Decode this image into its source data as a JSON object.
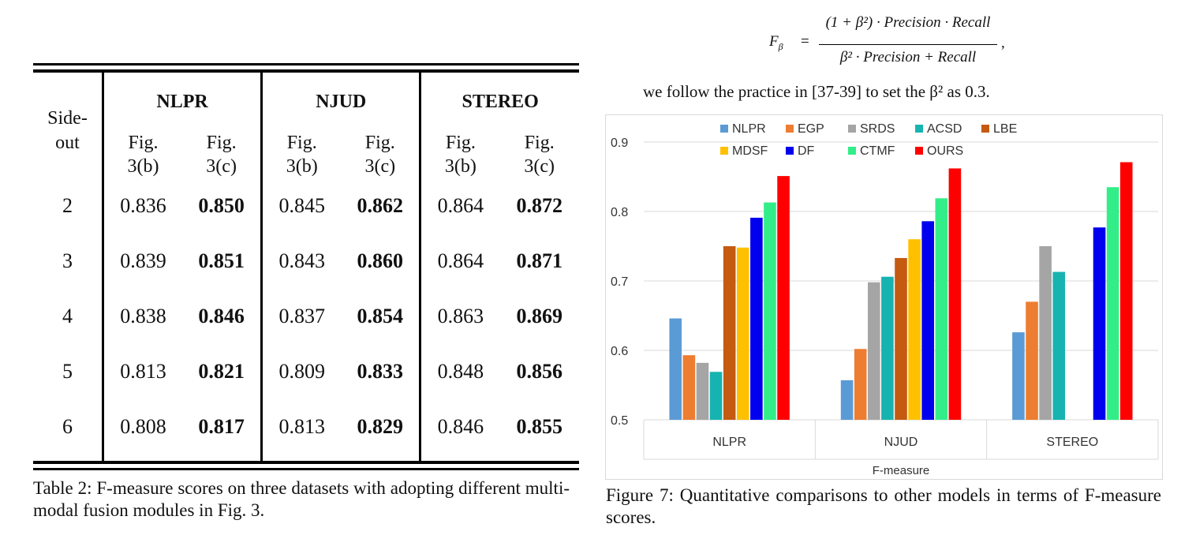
{
  "table": {
    "side_label": [
      "Side-",
      "out"
    ],
    "datasets": [
      "NLPR",
      "NJUD",
      "STEREO"
    ],
    "sub_headers": [
      [
        "Fig.",
        "3(b)"
      ],
      [
        "Fig.",
        "3(c)"
      ]
    ],
    "rows": [
      {
        "side": "2",
        "values": [
          "0.836",
          "0.850",
          "0.845",
          "0.862",
          "0.864",
          "0.872"
        ]
      },
      {
        "side": "3",
        "values": [
          "0.839",
          "0.851",
          "0.843",
          "0.860",
          "0.864",
          "0.871"
        ]
      },
      {
        "side": "4",
        "values": [
          "0.838",
          "0.846",
          "0.837",
          "0.854",
          "0.863",
          "0.869"
        ]
      },
      {
        "side": "5",
        "values": [
          "0.813",
          "0.821",
          "0.809",
          "0.833",
          "0.848",
          "0.856"
        ]
      },
      {
        "side": "6",
        "values": [
          "0.808",
          "0.817",
          "0.813",
          "0.829",
          "0.846",
          "0.855"
        ]
      }
    ],
    "caption": "Table 2: F-measure scores on three datasets with adopting different multi-modal fusion modules in Fig. 3."
  },
  "formula": {
    "lhs": "F",
    "lhs_sub": "β",
    "eq": "=",
    "numerator": "(1 + β²) · Precision · Recall",
    "denominator": "β² · Precision + Recall",
    "comma": ","
  },
  "note": "we follow the practice in [37-39] to set the β² as 0.3.",
  "figure_caption": "Figure 7: Quantitative comparisons to other models in terms of F-measure scores.",
  "chart_data": {
    "type": "bar",
    "categories": [
      "NLPR",
      "NJUD",
      "STEREO"
    ],
    "xlabel": "F-measure",
    "ylabel": "",
    "ylim": [
      0.5,
      0.9
    ],
    "yticks": [
      "0.5",
      "0.6",
      "0.7",
      "0.8",
      "0.9"
    ],
    "grid": true,
    "legend": "top",
    "series": [
      {
        "name": "NLPR",
        "color": "#5b9bd5",
        "values": [
          0.646,
          0.557,
          0.626
        ]
      },
      {
        "name": "EGP",
        "color": "#ed7d31",
        "values": [
          0.593,
          0.602,
          0.67
        ]
      },
      {
        "name": "SRDS",
        "color": "#a5a5a5",
        "values": [
          0.582,
          0.698,
          0.75
        ]
      },
      {
        "name": "ACSD",
        "color": "#17b3b0",
        "values": [
          0.569,
          0.706,
          0.713
        ]
      },
      {
        "name": "LBE",
        "color": "#c55a11",
        "values": [
          0.75,
          0.733,
          null
        ]
      },
      {
        "name": "MDSF",
        "color": "#ffc000",
        "values": [
          0.748,
          0.76,
          null
        ]
      },
      {
        "name": "DF",
        "color": "#0000ee",
        "values": [
          0.791,
          0.786,
          0.777
        ]
      },
      {
        "name": "CTMF",
        "color": "#33ee88",
        "values": [
          0.813,
          0.819,
          0.835
        ]
      },
      {
        "name": "OURS",
        "color": "#ff0000",
        "values": [
          0.851,
          0.862,
          0.871
        ]
      }
    ]
  }
}
